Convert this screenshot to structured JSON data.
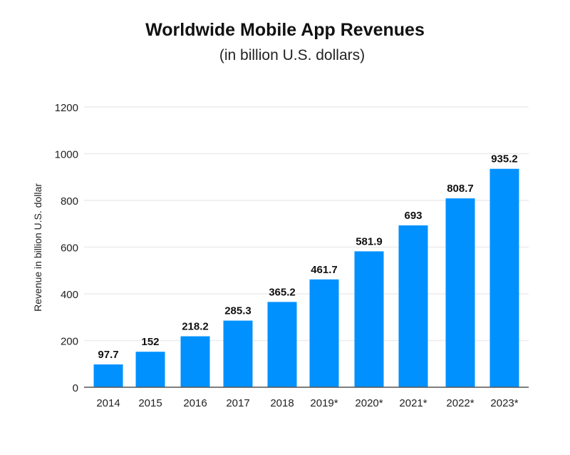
{
  "chart_data": {
    "type": "bar",
    "title": "Worldwide Mobile App Revenues",
    "subtitle": "(in billion U.S. dollars)",
    "xlabel": "",
    "ylabel": "Revenue in billion U.S. dollar",
    "ylim": [
      0,
      1200
    ],
    "yticks": [
      0,
      200,
      400,
      600,
      800,
      1000,
      1200
    ],
    "grid": true,
    "categories": [
      "2014",
      "2015",
      "2016",
      "2017",
      "2018",
      "2019*",
      "2020*",
      "2021*",
      "2022*",
      "2023*"
    ],
    "values": [
      97.7,
      152,
      218.2,
      285.3,
      365.2,
      461.7,
      581.9,
      693,
      808.7,
      935.2
    ],
    "value_labels": [
      "97.7",
      "152",
      "218.2",
      "285.3",
      "365.2",
      "461.7",
      "581.9",
      "693",
      "808.7",
      "935.2"
    ],
    "bar_color": "#0091ff"
  }
}
